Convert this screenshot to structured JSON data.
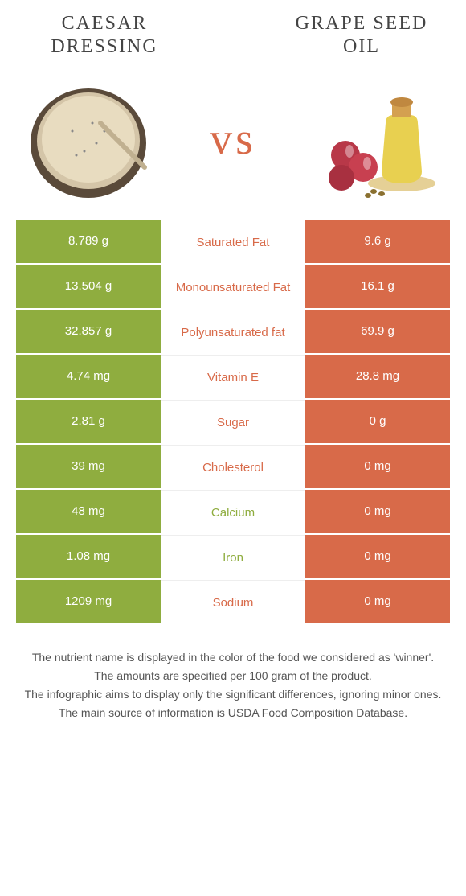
{
  "colors": {
    "left": "#8fad3f",
    "right": "#d86a49",
    "vs": "#d86a49",
    "background": "#ffffff",
    "header_text": "#444444",
    "footer_text": "#555555"
  },
  "header": {
    "left_title": "Caesar dressing",
    "right_title": "Grape seed oil",
    "vs_label": "vs"
  },
  "comparison": {
    "rows": [
      {
        "left": "8.789 g",
        "label": "Saturated Fat",
        "right": "9.6 g",
        "winner": "right"
      },
      {
        "left": "13.504 g",
        "label": "Monounsaturated Fat",
        "right": "16.1 g",
        "winner": "right"
      },
      {
        "left": "32.857 g",
        "label": "Polyunsaturated fat",
        "right": "69.9 g",
        "winner": "right"
      },
      {
        "left": "4.74 mg",
        "label": "Vitamin E",
        "right": "28.8 mg",
        "winner": "right"
      },
      {
        "left": "2.81 g",
        "label": "Sugar",
        "right": "0 g",
        "winner": "right"
      },
      {
        "left": "39 mg",
        "label": "Cholesterol",
        "right": "0 mg",
        "winner": "right"
      },
      {
        "left": "48 mg",
        "label": "Calcium",
        "right": "0 mg",
        "winner": "left"
      },
      {
        "left": "1.08 mg",
        "label": "Iron",
        "right": "0 mg",
        "winner": "left"
      },
      {
        "left": "1209 mg",
        "label": "Sodium",
        "right": "0 mg",
        "winner": "right"
      }
    ]
  },
  "footer": {
    "line1": "The nutrient name is displayed in the color of the food we considered as 'winner'.",
    "line2": "The amounts are specified per 100 gram of the product.",
    "line3": "The infographic aims to display only the significant differences, ignoring minor ones.",
    "line4": "The main source of information is USDA Food Composition Database."
  },
  "typography": {
    "header_fontsize": 24,
    "vs_fontsize": 56,
    "cell_fontsize": 15,
    "footer_fontsize": 14
  }
}
